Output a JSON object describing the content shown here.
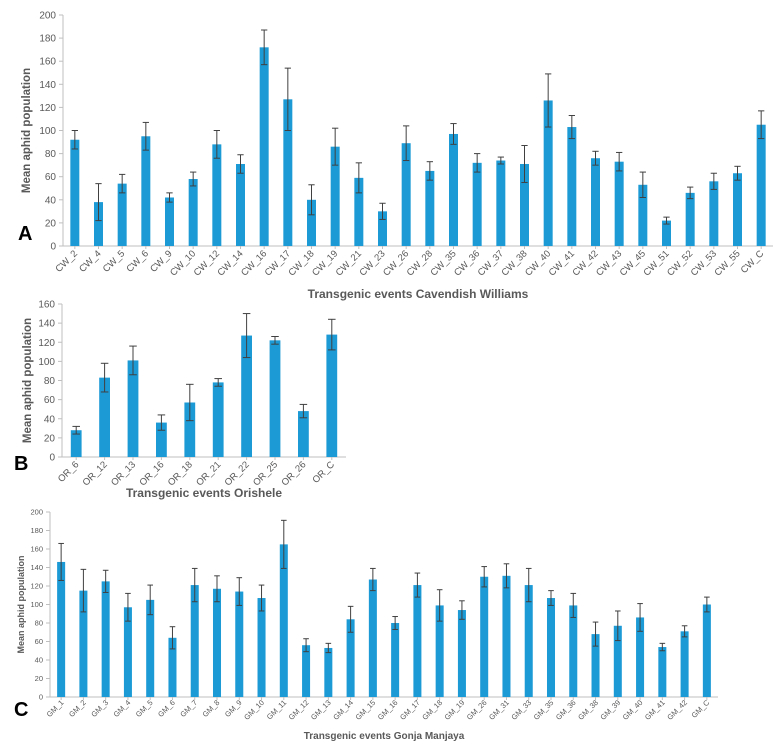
{
  "colors": {
    "bar": "#1b9ad6",
    "error": "#404040",
    "axis": "#bfbfbf",
    "text": "#595959"
  },
  "chart_data": [
    {
      "type": "bar",
      "panel": "A",
      "xlabel": "Transgenic events Cavendish Williams",
      "ylabel": "Mean aphid population",
      "ylim": [
        0,
        200
      ],
      "yticks": [
        0,
        20,
        40,
        60,
        80,
        100,
        120,
        140,
        160,
        180,
        200
      ],
      "grid": false,
      "categories": [
        "CW_2",
        "CW_4",
        "CW_5",
        "CW_6",
        "CW_9",
        "CW_10",
        "CW_12",
        "CW_14",
        "CW_16",
        "CW_17",
        "CW_18",
        "CW_19",
        "CW_21",
        "CW_23",
        "CW_26",
        "CW_28",
        "CW_35",
        "CW_36",
        "CW_37",
        "CW_38",
        "CW_40",
        "CW_41",
        "CW_42",
        "CW_43",
        "CW_45",
        "CW_51",
        "CW_52",
        "CW_53",
        "CW_55",
        "CW_C"
      ],
      "values": [
        92,
        38,
        54,
        95,
        42,
        58,
        88,
        71,
        172,
        127,
        40,
        86,
        59,
        30,
        89,
        65,
        97,
        72,
        74,
        71,
        126,
        103,
        76,
        73,
        53,
        22,
        46,
        56,
        63,
        105
      ],
      "errors": [
        8,
        16,
        8,
        12,
        4,
        6,
        12,
        8,
        15,
        27,
        13,
        16,
        13,
        7,
        15,
        8,
        9,
        8,
        3,
        16,
        23,
        10,
        6,
        8,
        11,
        3,
        5,
        7,
        6,
        12
      ]
    },
    {
      "type": "bar",
      "panel": "B",
      "xlabel": "Transgenic events Orishele",
      "ylabel": "Mean aphid population",
      "ylim": [
        0,
        160
      ],
      "yticks": [
        0,
        20,
        40,
        60,
        80,
        100,
        120,
        140,
        160
      ],
      "grid": false,
      "categories": [
        "OR_6",
        "OR_12",
        "OR_13",
        "OR_16",
        "OR_18",
        "OR_21",
        "OR_22",
        "OR_25",
        "OR_26",
        "OR_C"
      ],
      "values": [
        28,
        83,
        101,
        36,
        57,
        78,
        127,
        122,
        48,
        128
      ],
      "errors": [
        4,
        15,
        15,
        8,
        19,
        4,
        23,
        4,
        7,
        16
      ]
    },
    {
      "type": "bar",
      "panel": "C",
      "xlabel": "Transgenic events Gonja Manjaya",
      "ylabel": "Mean aphid population",
      "ylim": [
        0,
        200
      ],
      "yticks": [
        0,
        20,
        40,
        60,
        80,
        100,
        120,
        140,
        160,
        180,
        200
      ],
      "grid": false,
      "categories": [
        "GM_1",
        "GM_2",
        "GM_3",
        "GM_4",
        "GM_5",
        "GM_6",
        "GM_7",
        "GM_8",
        "GM_9",
        "GM_10",
        "GM_11",
        "GM_12",
        "GM_13",
        "GM_14",
        "GM_15",
        "GM_16",
        "GM_17",
        "GM_18",
        "GM_19",
        "GM_26",
        "GM_31",
        "GM_33",
        "GM_35",
        "GM_36",
        "GM_38",
        "GM_39",
        "GM_40",
        "GM_41",
        "GM_42",
        "GM_C"
      ],
      "values": [
        146,
        115,
        125,
        97,
        105,
        64,
        121,
        117,
        114,
        107,
        165,
        56,
        53,
        84,
        127,
        80,
        121,
        99,
        94,
        130,
        131,
        121,
        107,
        99,
        68,
        77,
        86,
        54,
        71,
        100
      ],
      "errors": [
        20,
        23,
        12,
        15,
        16,
        12,
        18,
        14,
        15,
        14,
        26,
        7,
        5,
        14,
        12,
        7,
        13,
        17,
        10,
        11,
        13,
        18,
        8,
        13,
        13,
        16,
        15,
        4,
        6,
        8
      ]
    }
  ]
}
